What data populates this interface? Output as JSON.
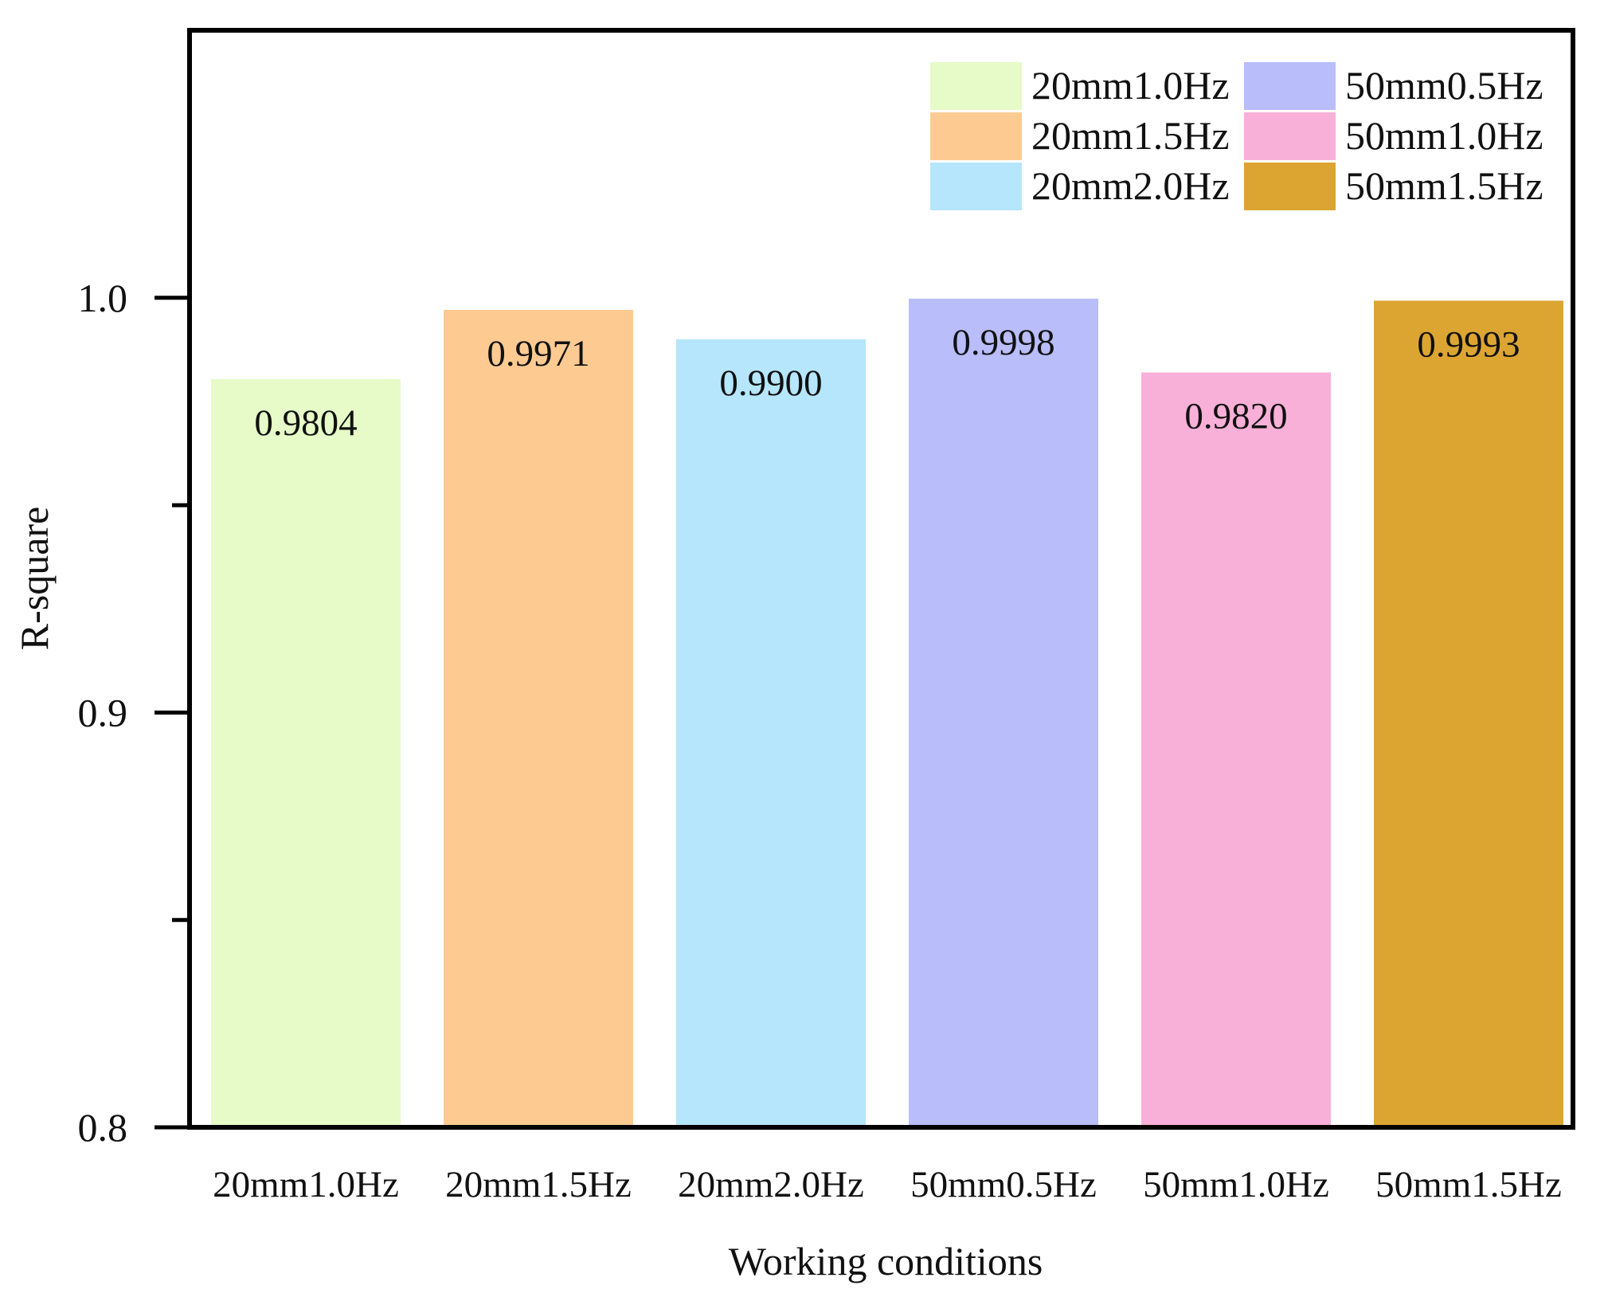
{
  "chart_data": {
    "type": "bar",
    "title": "",
    "xlabel": "Working conditions",
    "ylabel": "R-square",
    "ylim": [
      0.8,
      1.0645
    ],
    "yticks": [
      0.8,
      0.9,
      1.0
    ],
    "ytick_labels": [
      "0.8",
      "0.9",
      "1.0"
    ],
    "yminor_ticks": [
      0.85,
      0.95
    ],
    "grid": false,
    "legend_position": "top-right",
    "categories": [
      "20mm1.0Hz",
      "20mm1.5Hz",
      "20mm2.0Hz",
      "50mm0.5Hz",
      "50mm1.0Hz",
      "50mm1.5Hz"
    ],
    "values": [
      0.9804,
      0.9971,
      0.99,
      0.9998,
      0.982,
      0.9993
    ],
    "value_labels": [
      "0.9804",
      "0.9971",
      "0.9900",
      "0.9998",
      "0.9820",
      "0.9993"
    ],
    "colors": [
      "#e6fbc8",
      "#fdcb92",
      "#b6e6fb",
      "#b9bdfa",
      "#f9b0d8",
      "#dca532"
    ],
    "legend": [
      {
        "label": "20mm1.0Hz",
        "color": "#e6fbc8"
      },
      {
        "label": "20mm1.5Hz",
        "color": "#fdcb92"
      },
      {
        "label": "20mm2.0Hz",
        "color": "#b6e6fb"
      },
      {
        "label": "50mm0.5Hz",
        "color": "#b9bdfa"
      },
      {
        "label": "50mm1.0Hz",
        "color": "#f9b0d8"
      },
      {
        "label": "50mm1.5Hz",
        "color": "#dca532"
      }
    ]
  }
}
